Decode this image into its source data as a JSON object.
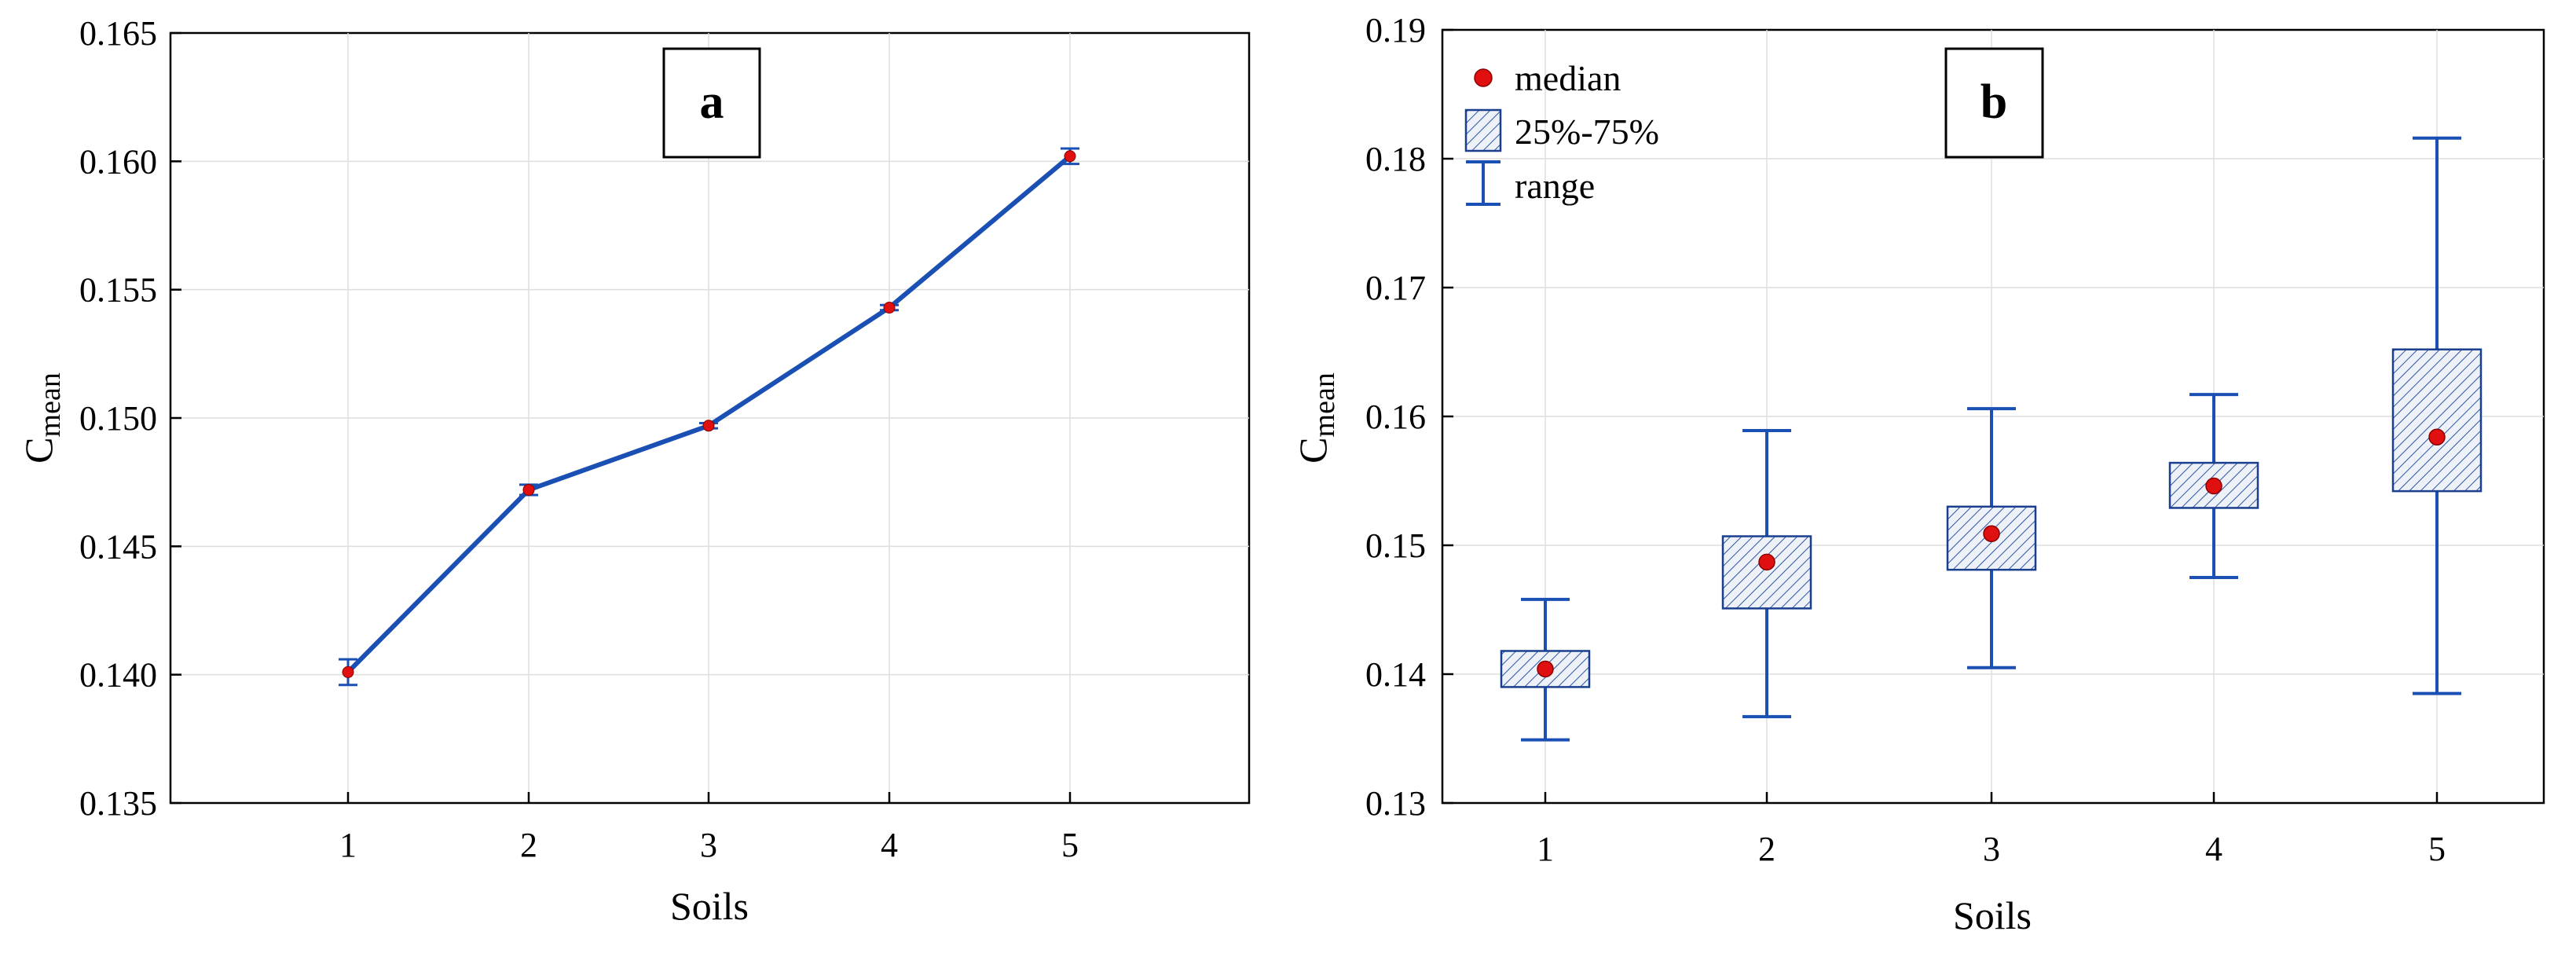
{
  "chart_data": [
    {
      "type": "line",
      "panel_label": "a",
      "xlabel": "Soils",
      "ylabel": "C",
      "ylabel_subscript": "mean",
      "categories": [
        "1",
        "2",
        "3",
        "4",
        "5"
      ],
      "ylim": [
        0.135,
        0.165
      ],
      "yticks": [
        "0.135",
        "0.140",
        "0.145",
        "0.150",
        "0.155",
        "0.160",
        "0.165"
      ],
      "grid": true,
      "series": [
        {
          "name": "Cmean",
          "color": "#1a4fb3",
          "marker_color": "#e01010",
          "values": [
            0.1401,
            0.1472,
            0.1497,
            0.1543,
            0.1602
          ],
          "err_low": [
            0.1396,
            0.147,
            0.1496,
            0.1542,
            0.1599
          ],
          "err_high": [
            0.1406,
            0.1474,
            0.1498,
            0.1544,
            0.1605
          ]
        }
      ]
    },
    {
      "type": "box",
      "panel_label": "b",
      "xlabel": "Soils",
      "ylabel": "C",
      "ylabel_subscript": "mean",
      "categories": [
        "1",
        "2",
        "3",
        "4",
        "5"
      ],
      "ylim": [
        0.13,
        0.19
      ],
      "yticks": [
        "0.13",
        "0.14",
        "0.15",
        "0.16",
        "0.17",
        "0.18",
        "0.19"
      ],
      "grid": true,
      "box_color": "#1a4fb3",
      "median_color": "#e01010",
      "boxes": [
        {
          "min": 0.1349,
          "q1": 0.139,
          "median": 0.1404,
          "q3": 0.1418,
          "max": 0.1458
        },
        {
          "min": 0.1367,
          "q1": 0.1451,
          "median": 0.1487,
          "q3": 0.1507,
          "max": 0.1589
        },
        {
          "min": 0.1405,
          "q1": 0.1481,
          "median": 0.1509,
          "q3": 0.153,
          "max": 0.1606
        },
        {
          "min": 0.1475,
          "q1": 0.1529,
          "median": 0.1546,
          "q3": 0.1564,
          "max": 0.1617
        },
        {
          "min": 0.1385,
          "q1": 0.1542,
          "median": 0.1584,
          "q3": 0.1652,
          "max": 0.1816
        }
      ],
      "legend": {
        "position": "top-left",
        "items": [
          "median",
          "25%-75%",
          "range"
        ]
      }
    }
  ]
}
